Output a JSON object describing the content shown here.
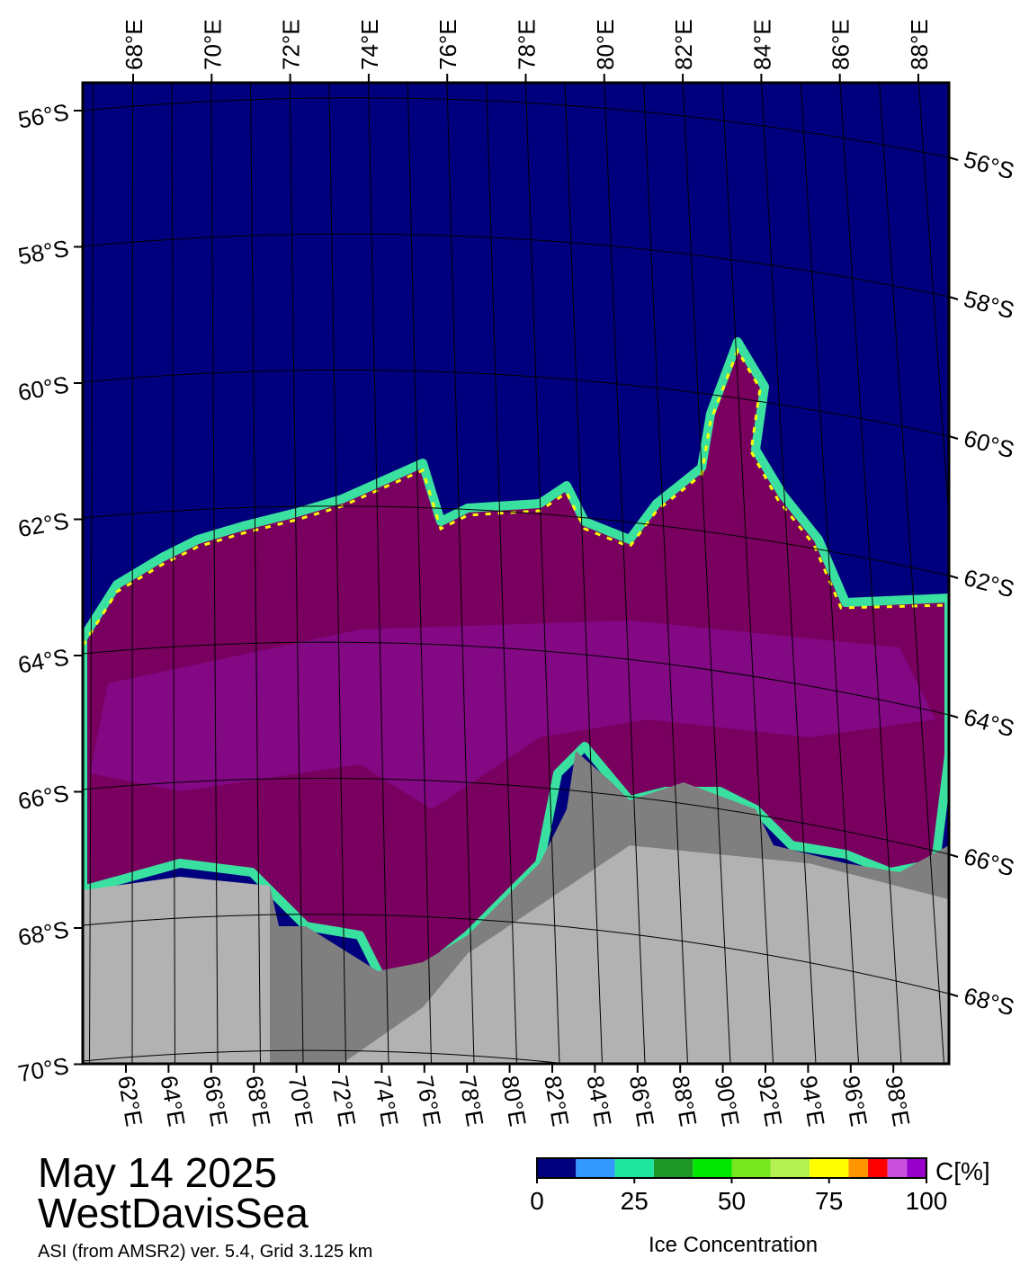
{
  "map": {
    "top_labels": [
      "68°E",
      "70°E",
      "72°E",
      "74°E",
      "76°E",
      "78°E",
      "80°E",
      "82°E",
      "84°E",
      "86°E",
      "88°E"
    ],
    "left_labels": [
      "56°S",
      "58°S",
      "60°S",
      "62°S",
      "64°S",
      "66°S",
      "68°S",
      "70°S"
    ],
    "right_labels": [
      "56°S",
      "58°S",
      "60°S",
      "62°S",
      "64°S",
      "66°S",
      "68°S"
    ],
    "bottom_labels": [
      "62°E",
      "64°E",
      "66°E",
      "68°E",
      "70°E",
      "72°E",
      "74°E",
      "76°E",
      "78°E",
      "80°E",
      "82°E",
      "84°E",
      "86°E",
      "88°E",
      "90°E",
      "92°E",
      "94°E",
      "96°E",
      "98°E"
    ]
  },
  "title": {
    "date": "May 14 2025",
    "region": "WestDavisSea",
    "source": "ASI (from AMSR2) ver. 5.4,  Grid 3.125 km"
  },
  "colorbar": {
    "unit": "C[%]",
    "label": "Ice Concentration",
    "range": [
      0,
      100
    ],
    "ticks": [
      0,
      25,
      50,
      75,
      100
    ],
    "bounds": [
      0,
      10,
      20,
      30,
      40,
      50,
      60,
      70,
      80,
      85,
      90,
      95,
      100
    ],
    "colors": [
      "#00007f",
      "#3399ff",
      "#1ee6a0",
      "#1e9628",
      "#00e600",
      "#78e61e",
      "#b4f050",
      "#ffff00",
      "#ff9600",
      "#ff0000",
      "#c850dc",
      "#9600c8"
    ]
  }
}
